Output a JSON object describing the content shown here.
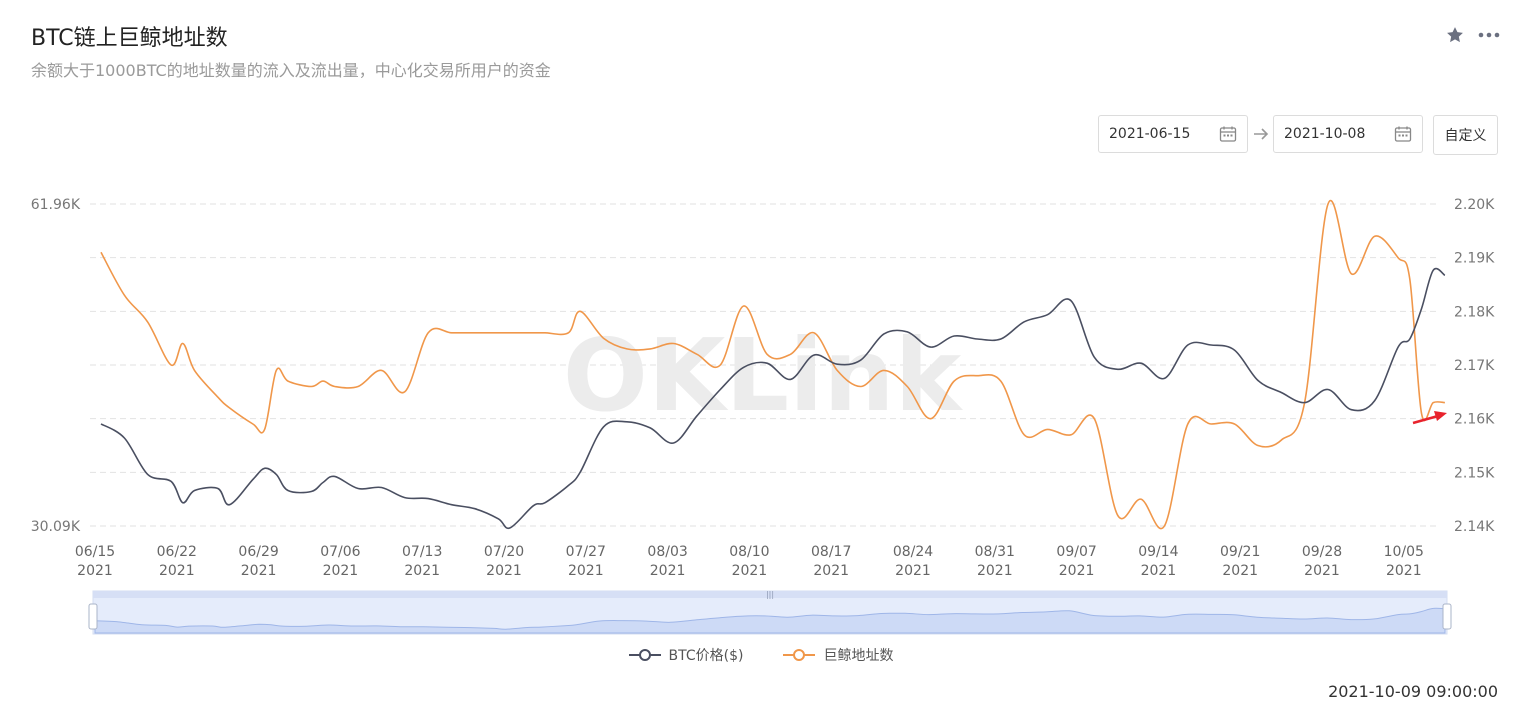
{
  "header": {
    "title": "BTC链上巨鲸地址数",
    "subtitle": "余额大于1000BTC的地址数量的流入及流出量，中心化交易所用户的资金",
    "star_icon": "star-icon",
    "more_icon": "more-icon"
  },
  "filters": {
    "start_date": "2021-06-15",
    "end_date": "2021-10-08",
    "custom_label": "自定义"
  },
  "watermark": "OKLink",
  "legend": {
    "items": [
      {
        "label": "BTC价格($)",
        "color": "#4a4f61"
      },
      {
        "label": "巨鲸地址数",
        "color": "#f0974a"
      }
    ]
  },
  "footer": {
    "timestamp": "2021-10-09 09:00:00"
  },
  "chart_data": {
    "type": "line",
    "title": "",
    "grid": true,
    "legend_position": "bottom-center",
    "x_tick_labels": [
      [
        "06/15",
        "2021"
      ],
      [
        "06/22",
        "2021"
      ],
      [
        "06/29",
        "2021"
      ],
      [
        "07/06",
        "2021"
      ],
      [
        "07/13",
        "2021"
      ],
      [
        "07/20",
        "2021"
      ],
      [
        "07/27",
        "2021"
      ],
      [
        "08/03",
        "2021"
      ],
      [
        "08/10",
        "2021"
      ],
      [
        "08/17",
        "2021"
      ],
      [
        "08/24",
        "2021"
      ],
      [
        "08/31",
        "2021"
      ],
      [
        "09/07",
        "2021"
      ],
      [
        "09/14",
        "2021"
      ],
      [
        "09/21",
        "2021"
      ],
      [
        "09/28",
        "2021"
      ],
      [
        "10/05",
        "2021"
      ]
    ],
    "y_left": {
      "min": 30090,
      "max": 61960,
      "ticks": [
        "61.96K",
        "30.09K"
      ]
    },
    "y_right": {
      "min": 2140,
      "max": 2200,
      "ticks": [
        "2.20K",
        "2.19K",
        "2.18K",
        "2.17K",
        "2.16K",
        "2.15K",
        "2.14K"
      ]
    },
    "series": [
      {
        "name": "BTC价格($)",
        "axis": "left",
        "color": "#4a4f61",
        "x": [
          "06-15",
          "06-17",
          "06-19",
          "06-21",
          "06-22",
          "06-23",
          "06-25",
          "06-26",
          "06-28",
          "06-29",
          "06-30",
          "07-01",
          "07-03",
          "07-04",
          "07-05",
          "07-07",
          "07-09",
          "07-11",
          "07-13",
          "07-15",
          "07-17",
          "07-19",
          "07-20",
          "07-22",
          "07-23",
          "07-25",
          "07-26",
          "07-28",
          "07-30",
          "08-01",
          "08-03",
          "08-05",
          "08-07",
          "08-09",
          "08-11",
          "08-13",
          "08-15",
          "08-17",
          "08-19",
          "08-21",
          "08-23",
          "08-25",
          "08-27",
          "08-29",
          "08-31",
          "09-02",
          "09-04",
          "09-06",
          "09-08",
          "09-10",
          "09-12",
          "09-14",
          "09-16",
          "09-18",
          "09-20",
          "09-22",
          "09-24",
          "09-26",
          "09-28",
          "09-30",
          "10-02",
          "10-04",
          "10-05",
          "10-06",
          "10-07",
          "10-08"
        ],
        "values": [
          40200,
          38800,
          35200,
          34500,
          32400,
          33600,
          33800,
          32200,
          34700,
          35800,
          35200,
          33600,
          33500,
          34400,
          35000,
          33800,
          33900,
          32900,
          32800,
          32200,
          31800,
          30800,
          29900,
          32100,
          32400,
          34100,
          35400,
          39900,
          40400,
          39800,
          38300,
          41000,
          43600,
          45800,
          46200,
          44600,
          47000,
          46100,
          46500,
          49100,
          49300,
          47800,
          48900,
          48600,
          48600,
          50300,
          51000,
          52400,
          46800,
          45600,
          46200,
          44700,
          48000,
          48000,
          47500,
          44500,
          43300,
          42300,
          43600,
          41600,
          42500,
          47800,
          48600,
          51600,
          55400,
          54900
        ]
      },
      {
        "name": "巨鲸地址数",
        "axis": "right",
        "color": "#f0974a",
        "x": [
          "06-15",
          "06-17",
          "06-19",
          "06-21",
          "06-22",
          "06-23",
          "06-25",
          "06-26",
          "06-28",
          "06-29",
          "06-30",
          "07-01",
          "07-03",
          "07-04",
          "07-05",
          "07-07",
          "07-09",
          "07-11",
          "07-13",
          "07-15",
          "07-17",
          "07-19",
          "07-20",
          "07-22",
          "07-23",
          "07-25",
          "07-26",
          "07-28",
          "07-30",
          "08-01",
          "08-03",
          "08-05",
          "08-07",
          "08-09",
          "08-11",
          "08-13",
          "08-15",
          "08-17",
          "08-19",
          "08-21",
          "08-23",
          "08-25",
          "08-27",
          "08-29",
          "08-31",
          "09-02",
          "09-04",
          "09-06",
          "09-08",
          "09-10",
          "09-12",
          "09-14",
          "09-16",
          "09-18",
          "09-20",
          "09-22",
          "09-24",
          "09-26",
          "09-28",
          "09-30",
          "10-02",
          "10-04",
          "10-05",
          "10-06",
          "10-07",
          "10-08"
        ],
        "values": [
          2191,
          2183,
          2178,
          2170,
          2174,
          2169,
          2164,
          2162,
          2159,
          2158,
          2169,
          2167,
          2166,
          2167,
          2166,
          2166,
          2169,
          2165,
          2176,
          2176,
          2176,
          2176,
          2176,
          2176,
          2176,
          2176,
          2180,
          2175,
          2173,
          2173,
          2174,
          2172,
          2170,
          2181,
          2172,
          2172,
          2176,
          2169,
          2166,
          2169,
          2166,
          2160,
          2167,
          2168,
          2167,
          2157,
          2158,
          2157,
          2160,
          2142,
          2145,
          2140,
          2159,
          2159,
          2159,
          2155,
          2156,
          2163,
          2200,
          2187,
          2194,
          2190,
          2186,
          2161,
          2163,
          2163
        ]
      }
    ]
  }
}
